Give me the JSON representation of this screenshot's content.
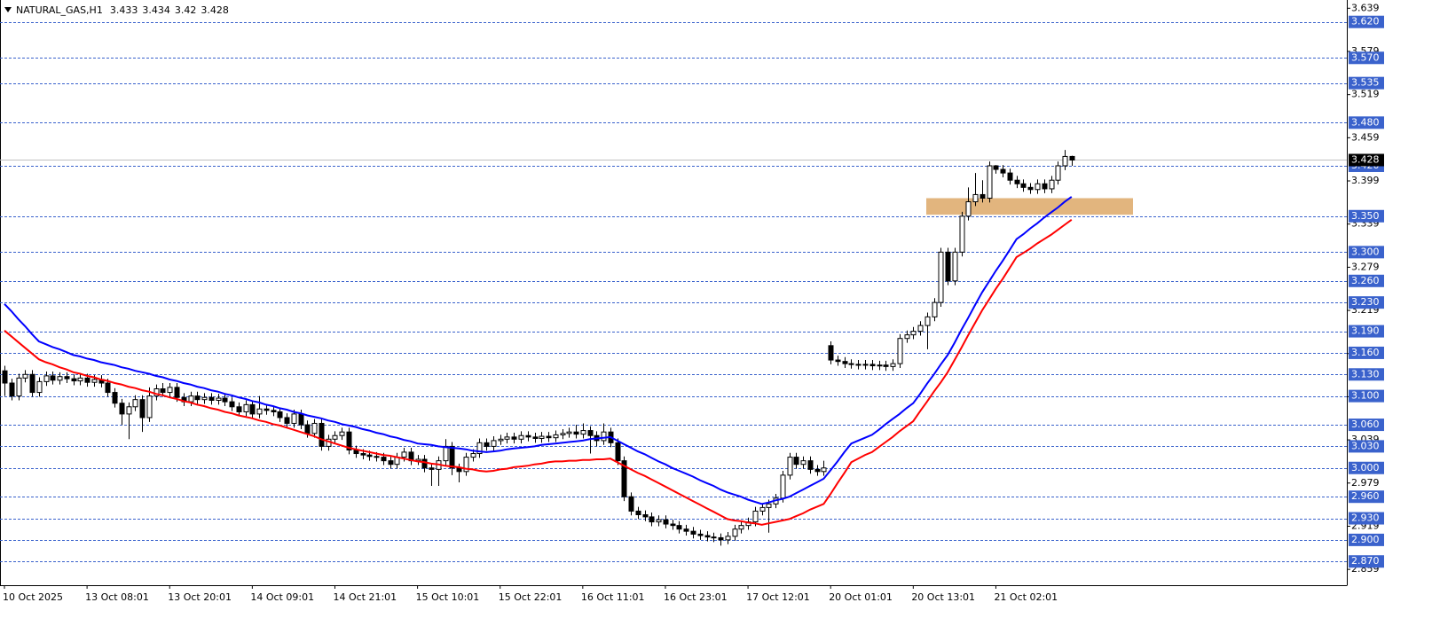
{
  "chart_data": {
    "type": "candlestick",
    "title": "NATURAL_GAS,H1",
    "categories": [
      "10 Oct 2025",
      null,
      null,
      null,
      null,
      null,
      null,
      null,
      null,
      null,
      null,
      null,
      "13 Oct 08:01",
      null,
      null,
      null,
      null,
      null,
      null,
      null,
      null,
      null,
      null,
      null,
      "13 Oct 20:01",
      null,
      null,
      null,
      null,
      null,
      null,
      null,
      null,
      null,
      null,
      null,
      "14 Oct 09:01",
      null,
      null,
      null,
      null,
      null,
      null,
      null,
      null,
      null,
      null,
      null,
      "14 Oct 21:01",
      null,
      null,
      null,
      null,
      null,
      null,
      null,
      null,
      null,
      null,
      null,
      "15 Oct 10:01",
      null,
      null,
      null,
      null,
      null,
      null,
      null,
      null,
      null,
      null,
      null,
      "15 Oct 22:01",
      null,
      null,
      null,
      null,
      null,
      null,
      null,
      null,
      null,
      null,
      null,
      "16 Oct 11:01",
      null,
      null,
      null,
      null,
      null,
      null,
      null,
      null,
      null,
      null,
      null,
      "16 Oct 23:01",
      null,
      null,
      null,
      null,
      null,
      null,
      null,
      null,
      null,
      null,
      null,
      "17 Oct 12:01",
      null,
      null,
      null,
      null,
      null,
      null,
      null,
      null,
      null,
      null,
      null,
      "20 Oct 01:01",
      null,
      null,
      null,
      null,
      null,
      null,
      null,
      null,
      null,
      null,
      null,
      "20 Oct 13:01",
      null,
      null,
      null,
      null,
      null,
      null,
      null,
      null,
      null,
      null,
      null,
      "21 Oct 02:01",
      null,
      null,
      null,
      null,
      null,
      null,
      null,
      null,
      null,
      null,
      null
    ],
    "open": [
      3.135,
      3.118,
      3.1,
      3.125,
      3.13,
      3.105,
      3.12,
      3.128,
      3.122,
      3.127,
      3.124,
      3.121,
      3.125,
      3.119,
      3.123,
      3.118,
      3.105,
      3.09,
      3.075,
      3.085,
      3.095,
      3.07,
      3.1,
      3.11,
      3.105,
      3.112,
      3.098,
      3.092,
      3.1,
      3.095,
      3.098,
      3.094,
      3.097,
      3.092,
      3.085,
      3.078,
      3.088,
      3.075,
      3.082,
      3.08,
      3.078,
      3.07,
      3.062,
      3.075,
      3.06,
      3.048,
      3.062,
      3.03,
      3.04,
      3.045,
      3.05,
      3.025,
      3.02,
      3.018,
      3.016,
      3.015,
      3.01,
      3.005,
      3.015,
      3.022,
      3.01,
      3.012,
      3.0,
      2.998,
      3.01,
      3.03,
      3.0,
      2.995,
      3.015,
      3.02,
      3.035,
      3.03,
      3.038,
      3.04,
      3.043,
      3.04,
      3.045,
      3.043,
      3.041,
      3.044,
      3.042,
      3.046,
      3.048,
      3.05,
      3.047,
      3.052,
      3.045,
      3.038,
      3.05,
      3.035,
      3.01,
      2.96,
      2.94,
      2.935,
      2.932,
      2.925,
      2.928,
      2.922,
      2.92,
      2.915,
      2.912,
      2.908,
      2.906,
      2.904,
      2.903,
      2.9,
      2.905,
      2.915,
      2.92,
      2.925,
      2.94,
      2.945,
      2.95,
      2.958,
      2.99,
      3.015,
      3.005,
      3.01,
      2.998,
      2.995,
      3.17,
      3.15,
      3.148,
      3.145,
      3.144,
      3.143,
      3.144,
      3.142,
      3.143,
      3.141,
      3.145,
      3.18,
      3.185,
      3.19,
      3.198,
      3.21,
      3.23,
      3.3,
      3.26,
      3.3,
      3.35,
      3.37,
      3.38,
      3.375,
      3.42,
      3.415,
      3.41,
      3.4,
      3.395,
      3.39,
      3.387,
      3.395,
      3.388,
      3.4,
      3.42,
      3.433
    ],
    "high": [
      3.142,
      3.124,
      3.131,
      3.136,
      3.136,
      3.126,
      3.134,
      3.134,
      3.133,
      3.133,
      3.13,
      3.131,
      3.131,
      3.129,
      3.129,
      3.124,
      3.111,
      3.096,
      3.091,
      3.101,
      3.101,
      3.112,
      3.116,
      3.118,
      3.118,
      3.118,
      3.104,
      3.106,
      3.106,
      3.104,
      3.104,
      3.103,
      3.103,
      3.098,
      3.091,
      3.094,
      3.094,
      3.1,
      3.088,
      3.086,
      3.084,
      3.076,
      3.081,
      3.081,
      3.066,
      3.068,
      3.068,
      3.046,
      3.051,
      3.056,
      3.056,
      3.031,
      3.026,
      3.024,
      3.022,
      3.021,
      3.016,
      3.021,
      3.028,
      3.028,
      3.018,
      3.018,
      3.006,
      3.016,
      3.04,
      3.036,
      3.006,
      3.021,
      3.026,
      3.041,
      3.041,
      3.044,
      3.046,
      3.049,
      3.049,
      3.051,
      3.051,
      3.049,
      3.05,
      3.05,
      3.052,
      3.054,
      3.056,
      3.06,
      3.062,
      3.058,
      3.051,
      3.062,
      3.056,
      3.041,
      3.016,
      2.966,
      2.946,
      2.941,
      2.938,
      2.934,
      2.934,
      2.928,
      2.926,
      2.921,
      2.918,
      2.914,
      2.912,
      2.91,
      2.909,
      2.911,
      2.921,
      2.926,
      2.931,
      2.946,
      2.951,
      2.956,
      2.964,
      2.996,
      3.021,
      3.021,
      3.016,
      3.016,
      3.004,
      3.01,
      3.176,
      3.156,
      3.154,
      3.151,
      3.15,
      3.15,
      3.15,
      3.149,
      3.149,
      3.151,
      3.186,
      3.191,
      3.196,
      3.204,
      3.216,
      3.236,
      3.306,
      3.306,
      3.306,
      3.356,
      3.39,
      3.41,
      3.4,
      3.426,
      3.421,
      3.421,
      3.416,
      3.406,
      3.401,
      3.396,
      3.401,
      3.401,
      3.406,
      3.426,
      3.442,
      3.434
    ],
    "low": [
      3.1,
      3.094,
      3.094,
      3.119,
      3.099,
      3.099,
      3.114,
      3.116,
      3.116,
      3.118,
      3.115,
      3.115,
      3.113,
      3.113,
      3.112,
      3.099,
      3.084,
      3.06,
      3.04,
      3.079,
      3.05,
      3.064,
      3.094,
      3.099,
      3.099,
      3.092,
      3.086,
      3.086,
      3.089,
      3.089,
      3.088,
      3.088,
      3.086,
      3.079,
      3.072,
      3.072,
      3.069,
      3.069,
      3.074,
      3.072,
      3.064,
      3.056,
      3.056,
      3.054,
      3.042,
      3.042,
      3.024,
      3.024,
      3.034,
      3.039,
      3.019,
      3.014,
      3.012,
      3.01,
      3.009,
      3.004,
      2.999,
      2.999,
      3.009,
      3.004,
      3.004,
      2.994,
      2.975,
      2.975,
      3.004,
      2.99,
      2.98,
      2.989,
      3.009,
      3.014,
      3.024,
      3.024,
      3.032,
      3.034,
      3.034,
      3.034,
      3.037,
      3.035,
      3.035,
      3.036,
      3.036,
      3.04,
      3.042,
      3.041,
      3.041,
      3.02,
      3.03,
      3.032,
      3.029,
      3.004,
      2.954,
      2.934,
      2.929,
      2.926,
      2.919,
      2.919,
      2.916,
      2.914,
      2.909,
      2.906,
      2.902,
      2.9,
      2.898,
      2.897,
      2.892,
      2.894,
      2.899,
      2.909,
      2.914,
      2.919,
      2.934,
      2.91,
      2.944,
      2.952,
      2.984,
      2.999,
      2.999,
      2.992,
      2.989,
      2.989,
      3.144,
      3.142,
      3.139,
      3.138,
      3.137,
      3.137,
      3.136,
      3.136,
      3.135,
      3.135,
      3.139,
      3.174,
      3.179,
      3.184,
      3.165,
      3.204,
      3.224,
      3.254,
      3.254,
      3.294,
      3.344,
      3.364,
      3.369,
      3.369,
      3.409,
      3.404,
      3.394,
      3.389,
      3.384,
      3.381,
      3.381,
      3.382,
      3.382,
      3.394,
      3.414,
      3.42
    ],
    "close": [
      3.118,
      3.1,
      3.125,
      3.13,
      3.105,
      3.12,
      3.128,
      3.122,
      3.127,
      3.124,
      3.121,
      3.125,
      3.119,
      3.123,
      3.118,
      3.105,
      3.09,
      3.075,
      3.085,
      3.095,
      3.07,
      3.1,
      3.11,
      3.105,
      3.112,
      3.098,
      3.092,
      3.1,
      3.095,
      3.098,
      3.094,
      3.097,
      3.092,
      3.085,
      3.078,
      3.088,
      3.075,
      3.082,
      3.08,
      3.078,
      3.07,
      3.062,
      3.075,
      3.06,
      3.048,
      3.062,
      3.03,
      3.04,
      3.045,
      3.05,
      3.025,
      3.02,
      3.018,
      3.016,
      3.015,
      3.01,
      3.005,
      3.015,
      3.022,
      3.01,
      3.012,
      3.0,
      2.998,
      3.01,
      3.03,
      3.0,
      2.995,
      3.015,
      3.02,
      3.035,
      3.03,
      3.038,
      3.04,
      3.043,
      3.04,
      3.045,
      3.043,
      3.041,
      3.044,
      3.042,
      3.046,
      3.048,
      3.05,
      3.047,
      3.052,
      3.045,
      3.038,
      3.05,
      3.035,
      3.01,
      2.96,
      2.94,
      2.935,
      2.932,
      2.925,
      2.928,
      2.922,
      2.92,
      2.915,
      2.912,
      2.908,
      2.906,
      2.904,
      2.903,
      2.9,
      2.905,
      2.915,
      2.92,
      2.925,
      2.94,
      2.945,
      2.95,
      2.958,
      2.99,
      3.015,
      3.005,
      3.01,
      2.998,
      2.995,
      3.0,
      3.15,
      3.148,
      3.145,
      3.144,
      3.143,
      3.144,
      3.142,
      3.143,
      3.141,
      3.145,
      3.18,
      3.185,
      3.19,
      3.198,
      3.21,
      3.23,
      3.3,
      3.26,
      3.3,
      3.35,
      3.37,
      3.38,
      3.375,
      3.42,
      3.415,
      3.41,
      3.4,
      3.395,
      3.39,
      3.387,
      3.395,
      3.388,
      3.4,
      3.42,
      3.433,
      3.428
    ],
    "bull_color": "#ffffff",
    "bear_color": "#000000",
    "series": [
      {
        "color": "#0000ff",
        "values": [
          3.228,
          3.218,
          3.207,
          3.197,
          3.186,
          3.176,
          3.172,
          3.168,
          3.165,
          3.161,
          3.157,
          3.155,
          3.152,
          3.15,
          3.147,
          3.145,
          3.143,
          3.14,
          3.138,
          3.135,
          3.133,
          3.131,
          3.128,
          3.126,
          3.123,
          3.121,
          3.118,
          3.116,
          3.113,
          3.111,
          3.108,
          3.106,
          3.103,
          3.101,
          3.098,
          3.096,
          3.093,
          3.091,
          3.088,
          3.086,
          3.083,
          3.081,
          3.078,
          3.076,
          3.073,
          3.071,
          3.069,
          3.066,
          3.064,
          3.061,
          3.059,
          3.057,
          3.054,
          3.052,
          3.049,
          3.047,
          3.044,
          3.042,
          3.039,
          3.037,
          3.034,
          3.033,
          3.032,
          3.03,
          3.029,
          3.028,
          3.027,
          3.026,
          3.024,
          3.023,
          3.022,
          3.023,
          3.024,
          3.026,
          3.027,
          3.028,
          3.029,
          3.03,
          3.032,
          3.033,
          3.034,
          3.035,
          3.036,
          3.037,
          3.038,
          3.04,
          3.041,
          3.042,
          3.043,
          3.038,
          3.033,
          3.028,
          3.023,
          3.019,
          3.014,
          3.009,
          3.005,
          3.0,
          2.996,
          2.992,
          2.988,
          2.983,
          2.979,
          2.975,
          2.97,
          2.966,
          2.963,
          2.96,
          2.956,
          2.953,
          2.95,
          2.952,
          2.955,
          2.957,
          2.96,
          2.965,
          2.97,
          2.975,
          2.98,
          2.985,
          2.997,
          3.009,
          3.022,
          3.034,
          3.038,
          3.042,
          3.046,
          3.053,
          3.061,
          3.068,
          3.075,
          3.083,
          3.09,
          3.103,
          3.117,
          3.13,
          3.144,
          3.157,
          3.174,
          3.192,
          3.209,
          3.227,
          3.244,
          3.259,
          3.274,
          3.288,
          3.303,
          3.318,
          3.325,
          3.333,
          3.34,
          3.348,
          3.355,
          3.362,
          3.37,
          3.377
        ]
      },
      {
        "color": "#ff0000",
        "values": [
          3.191,
          3.183,
          3.175,
          3.167,
          3.159,
          3.151,
          3.147,
          3.144,
          3.14,
          3.137,
          3.133,
          3.131,
          3.128,
          3.126,
          3.123,
          3.121,
          3.118,
          3.116,
          3.113,
          3.111,
          3.108,
          3.106,
          3.103,
          3.101,
          3.098,
          3.096,
          3.093,
          3.091,
          3.088,
          3.086,
          3.083,
          3.081,
          3.078,
          3.076,
          3.073,
          3.071,
          3.069,
          3.066,
          3.064,
          3.061,
          3.059,
          3.056,
          3.053,
          3.05,
          3.047,
          3.044,
          3.04,
          3.037,
          3.034,
          3.031,
          3.028,
          3.026,
          3.024,
          3.022,
          3.02,
          3.018,
          3.017,
          3.015,
          3.013,
          3.011,
          3.009,
          3.008,
          3.006,
          3.005,
          3.003,
          3.002,
          3.001,
          2.999,
          2.998,
          2.996,
          2.995,
          2.996,
          2.998,
          2.999,
          3.001,
          3.002,
          3.003,
          3.005,
          3.006,
          3.008,
          3.009,
          3.009,
          3.01,
          3.01,
          3.011,
          3.011,
          3.012,
          3.012,
          3.013,
          3.008,
          3.003,
          2.998,
          2.993,
          2.989,
          2.984,
          2.979,
          2.974,
          2.969,
          2.964,
          2.959,
          2.954,
          2.949,
          2.944,
          2.939,
          2.934,
          2.929,
          2.927,
          2.926,
          2.924,
          2.923,
          2.921,
          2.923,
          2.925,
          2.927,
          2.929,
          2.933,
          2.937,
          2.942,
          2.946,
          2.95,
          2.964,
          2.979,
          2.993,
          3.008,
          3.013,
          3.018,
          3.022,
          3.029,
          3.036,
          3.043,
          3.051,
          3.058,
          3.065,
          3.079,
          3.092,
          3.106,
          3.119,
          3.133,
          3.15,
          3.167,
          3.185,
          3.202,
          3.219,
          3.234,
          3.249,
          3.263,
          3.278,
          3.293,
          3.299,
          3.305,
          3.312,
          3.318,
          3.324,
          3.331,
          3.338,
          3.345
        ]
      }
    ],
    "ylim": [
      2.837,
      3.648
    ],
    "yticks": [
      3.639,
      3.579,
      3.519,
      3.459,
      3.399,
      3.339,
      3.279,
      3.219,
      3.159,
      3.099,
      3.039,
      2.979,
      2.919,
      2.859
    ],
    "levels": [
      {
        "value": 3.62,
        "label": "3.620"
      },
      {
        "value": 3.57,
        "label": "3.570"
      },
      {
        "value": 3.535,
        "label": "3.535"
      },
      {
        "value": 3.48,
        "label": "3.480"
      },
      {
        "value": 3.42,
        "label": "3.420"
      },
      {
        "value": 3.35,
        "label": "3.350"
      },
      {
        "value": 3.3,
        "label": "3.300"
      },
      {
        "value": 3.26,
        "label": "3.260"
      },
      {
        "value": 3.23,
        "label": "3.230"
      },
      {
        "value": 3.19,
        "label": "3.190"
      },
      {
        "value": 3.16,
        "label": "3.160"
      },
      {
        "value": 3.13,
        "label": "3.130"
      },
      {
        "value": 3.1,
        "label": "3.100"
      },
      {
        "value": 3.06,
        "label": "3.060"
      },
      {
        "value": 3.03,
        "label": "3.030"
      },
      {
        "value": 3.0,
        "label": "3.000"
      },
      {
        "value": 2.96,
        "label": "2.960"
      },
      {
        "value": 2.93,
        "label": "2.930"
      },
      {
        "value": 2.9,
        "label": "2.900"
      },
      {
        "value": 2.87,
        "label": "2.870"
      }
    ],
    "level_color": "#3a62cc",
    "zone": {
      "ylim": [
        3.352,
        3.375
      ],
      "color": "#e2b57e"
    }
  }
}
